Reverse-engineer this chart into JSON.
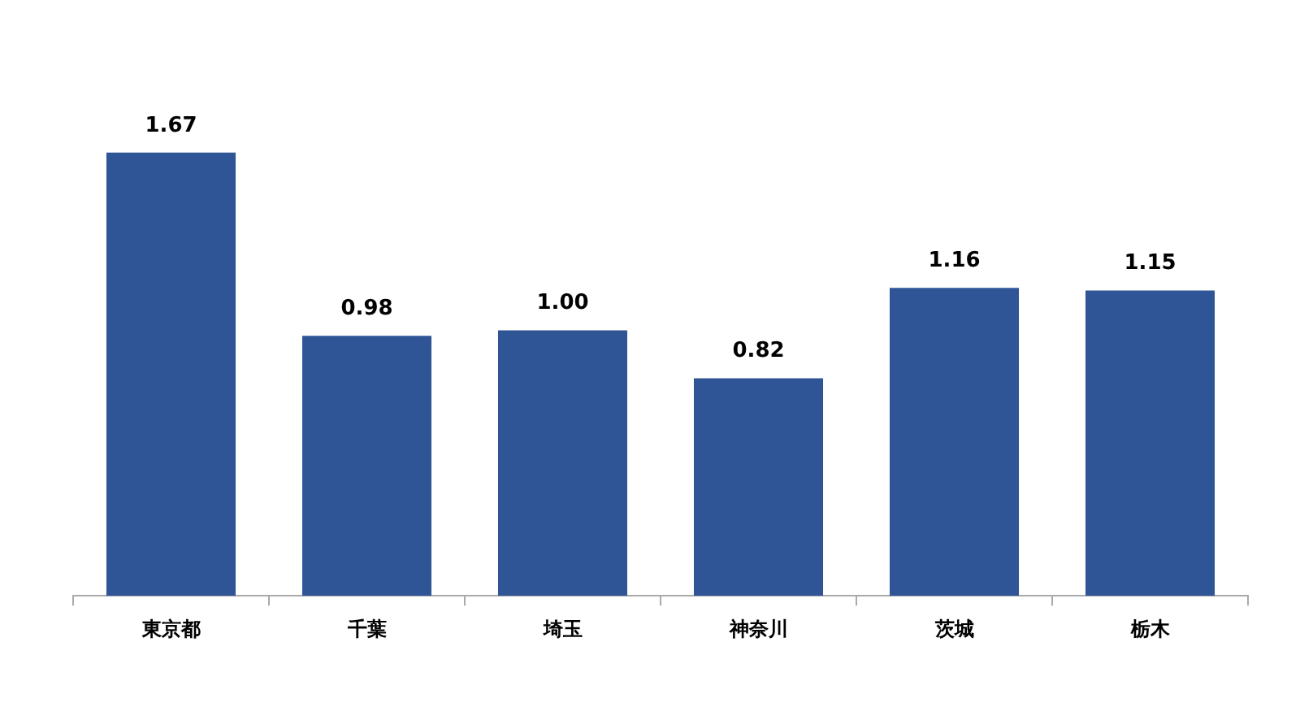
{
  "chart_data": {
    "type": "bar",
    "categories": [
      "東京都",
      "千葉",
      "埼玉",
      "神奈川",
      "茨城",
      "栃木"
    ],
    "values": [
      1.67,
      0.98,
      1.0,
      0.82,
      1.16,
      1.15
    ],
    "value_labels": [
      "1.67",
      "0.98",
      "1.00",
      "0.82",
      "1.16",
      "1.15"
    ],
    "color": "#2f5597",
    "tick_labels": "x",
    "grid": false,
    "legend": false
  }
}
